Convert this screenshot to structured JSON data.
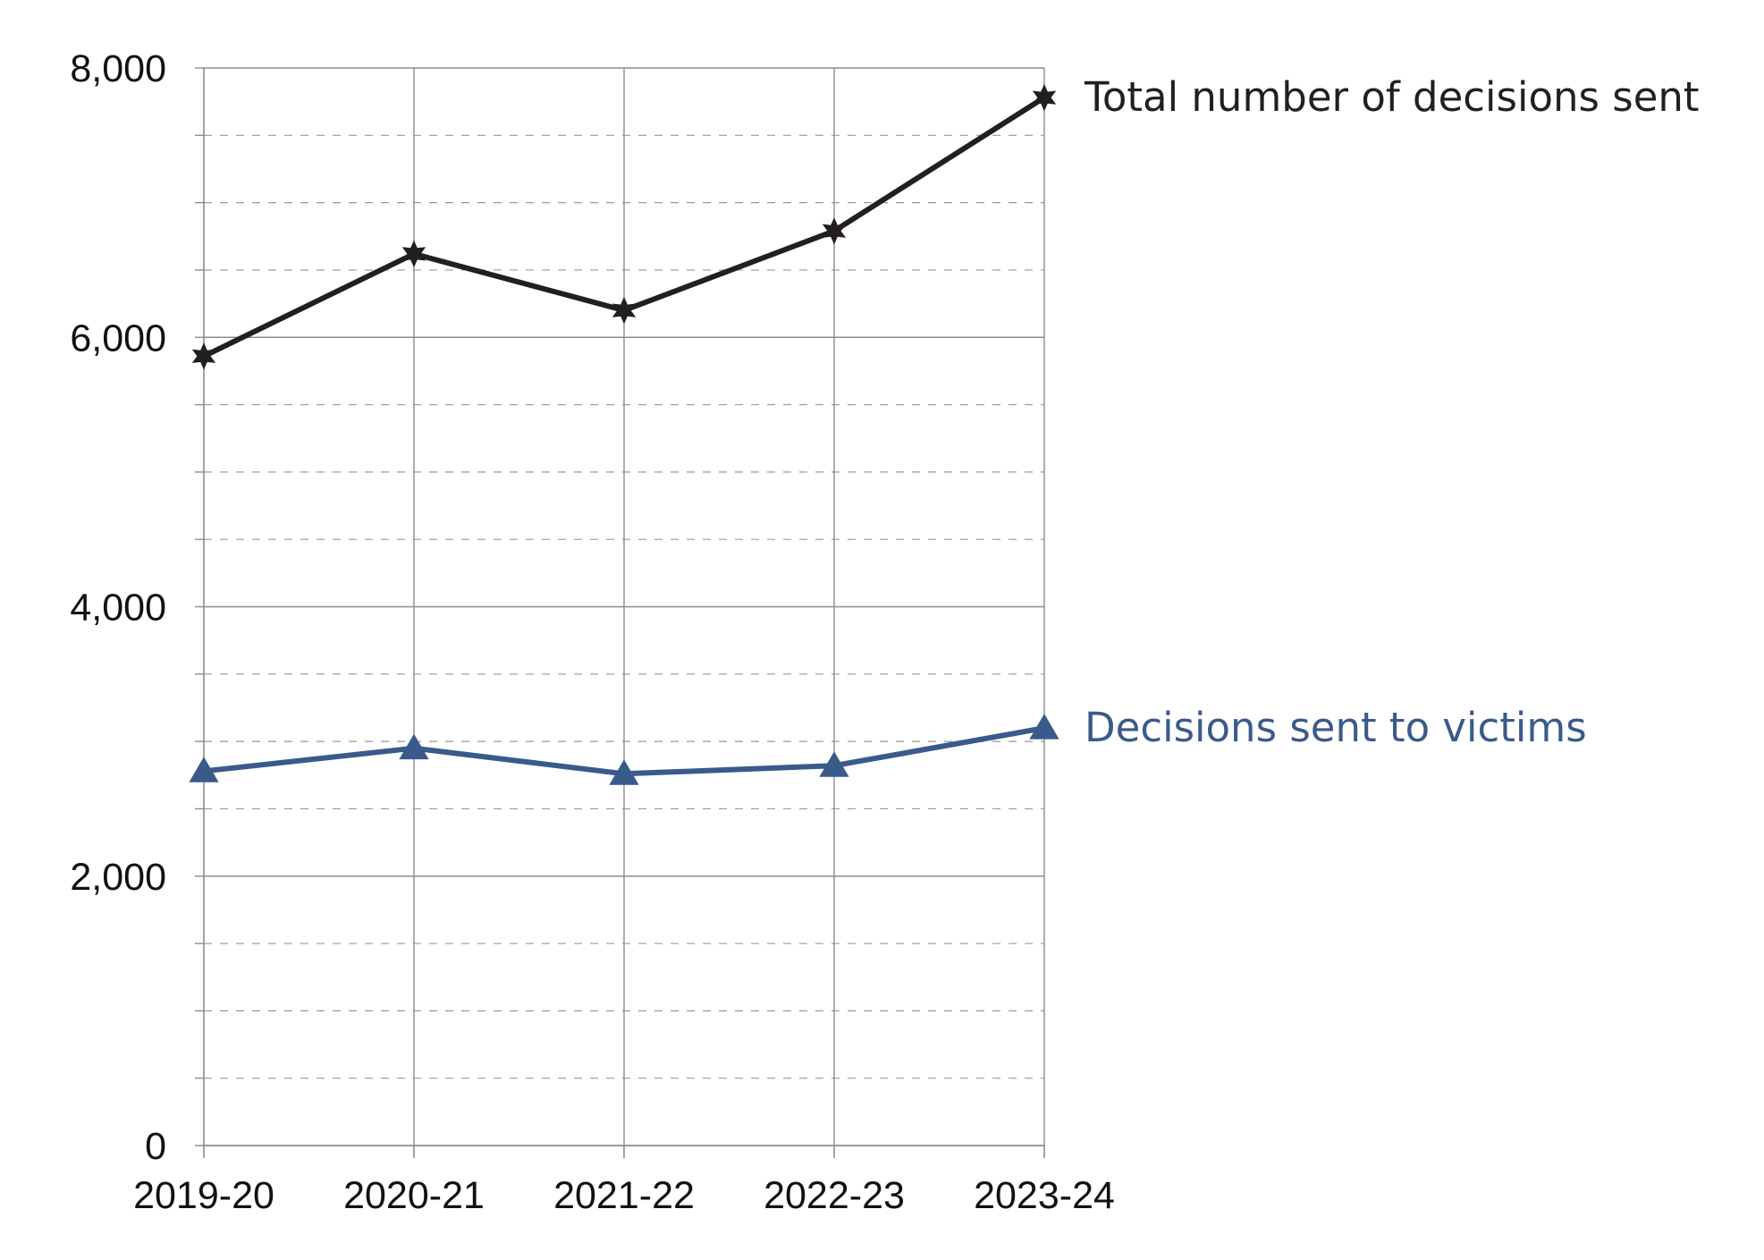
{
  "chart_data": {
    "type": "line",
    "title": "",
    "xlabel": "",
    "ylabel": "",
    "categories": [
      "2019-20",
      "2020-21",
      "2021-22",
      "2022-23",
      "2023-24"
    ],
    "ylim": [
      0,
      8000
    ],
    "y_ticks": [
      {
        "value": 0,
        "label": "0"
      },
      {
        "value": 2000,
        "label": "2,000"
      },
      {
        "value": 4000,
        "label": "4,000"
      },
      {
        "value": 6000,
        "label": "6,000"
      },
      {
        "value": 8000,
        "label": "8,000"
      }
    ],
    "y_minor_step": 500,
    "grid": {
      "major": true,
      "minor_dashed": true,
      "vertical": true
    },
    "legend": "direct labels at line ends (right)",
    "series": [
      {
        "name": "Total number of decisions sent",
        "color": "#231f20",
        "marker": "star",
        "values": [
          5860,
          6620,
          6200,
          6790,
          7780
        ]
      },
      {
        "name": "Decisions sent to victims",
        "color": "#3a5a8a",
        "marker": "triangle",
        "values": [
          2780,
          2950,
          2760,
          2820,
          3100
        ]
      }
    ]
  }
}
